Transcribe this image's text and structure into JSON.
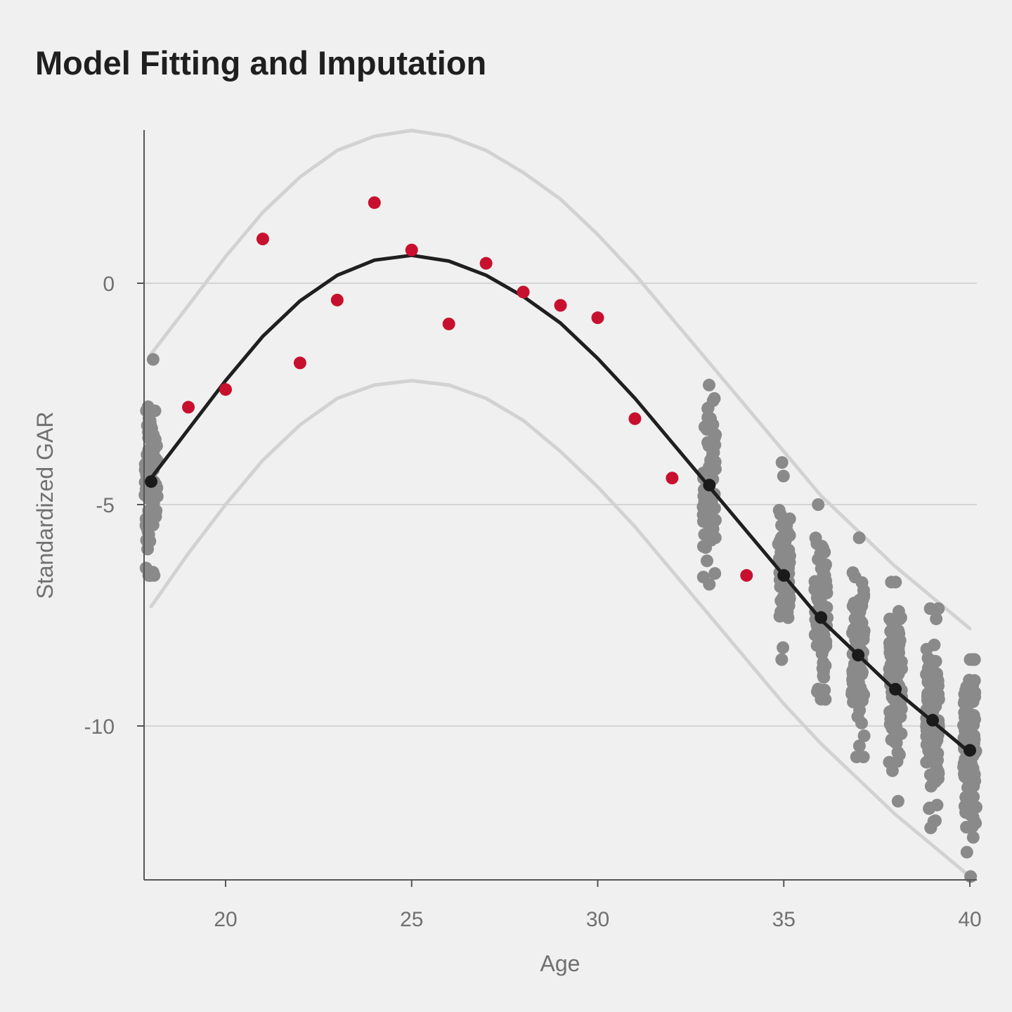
{
  "chart_data": {
    "type": "scatter",
    "title": "Model Fitting and Imputation",
    "xlabel": "Age",
    "ylabel": "Standardized GAR",
    "xlim": [
      17.8,
      40.2
    ],
    "ylim": [
      -13.5,
      3.4
    ],
    "x_ticks": [
      20,
      25,
      30,
      35,
      40
    ],
    "y_ticks": [
      0,
      -5,
      -10
    ],
    "x_tick_labels": [
      "20",
      "25",
      "30",
      "35",
      "40"
    ],
    "y_tick_labels": [
      "0",
      "-5",
      "-10"
    ],
    "grid": "horizontal",
    "colors": {
      "observed": "#c8102e",
      "imputed": "#8a8a8a",
      "imputed_mean": "#1a1a1a",
      "fit_line": "#1f1f1f",
      "interval_band": "#d2d2d2"
    },
    "series": [
      {
        "name": "Fitted curve",
        "kind": "line",
        "x": [
          18,
          19,
          20,
          21,
          22,
          23,
          24,
          25,
          26,
          27,
          28,
          29,
          30,
          31,
          32,
          33,
          34,
          35,
          36,
          37,
          38,
          39,
          40
        ],
        "y": [
          -4.4,
          -3.3,
          -2.2,
          -1.2,
          -0.4,
          0.18,
          0.52,
          0.63,
          0.5,
          0.18,
          -0.3,
          -0.9,
          -1.7,
          -2.6,
          -3.6,
          -4.6,
          -5.6,
          -6.6,
          -7.6,
          -8.4,
          -9.2,
          -9.9,
          -10.6
        ]
      },
      {
        "name": "Upper bound",
        "kind": "line",
        "x": [
          18,
          19,
          20,
          21,
          22,
          23,
          24,
          25,
          26,
          27,
          28,
          29,
          30,
          31,
          32,
          33,
          34,
          35,
          36,
          37,
          38,
          39,
          40
        ],
        "y": [
          -1.6,
          -0.5,
          0.6,
          1.6,
          2.4,
          3.0,
          3.32,
          3.45,
          3.32,
          3.0,
          2.5,
          1.9,
          1.1,
          0.2,
          -0.8,
          -1.8,
          -2.8,
          -3.8,
          -4.8,
          -5.6,
          -6.4,
          -7.1,
          -7.8
        ]
      },
      {
        "name": "Lower bound",
        "kind": "line",
        "x": [
          18,
          19,
          20,
          21,
          22,
          23,
          24,
          25,
          26,
          27,
          28,
          29,
          30,
          31,
          32,
          33,
          34,
          35,
          36,
          37,
          38,
          39,
          40
        ],
        "y": [
          -7.3,
          -6.1,
          -5.0,
          -4.0,
          -3.2,
          -2.6,
          -2.3,
          -2.2,
          -2.3,
          -2.6,
          -3.1,
          -3.8,
          -4.6,
          -5.5,
          -6.5,
          -7.5,
          -8.5,
          -9.5,
          -10.4,
          -11.2,
          -12.0,
          -12.7,
          -13.4
        ]
      },
      {
        "name": "Observed",
        "kind": "points",
        "x": [
          19,
          20,
          21,
          22,
          23,
          24,
          25,
          26,
          27,
          28,
          29,
          30,
          31,
          32,
          34
        ],
        "y": [
          -2.8,
          -2.4,
          1.0,
          -1.8,
          -0.38,
          1.82,
          0.75,
          -0.92,
          0.45,
          -0.2,
          -0.5,
          -0.78,
          -3.06,
          -4.4,
          -6.6
        ]
      },
      {
        "name": "Imputed mean",
        "kind": "points",
        "x": [
          18,
          33,
          35,
          36,
          37,
          38,
          39,
          40
        ],
        "y": [
          -4.48,
          -4.56,
          -6.6,
          -7.55,
          -8.4,
          -9.17,
          -9.87,
          -10.55
        ]
      }
    ],
    "imputed_clusters": [
      {
        "age": 18,
        "center": -4.48,
        "spread": 1.1,
        "count": 90,
        "ymin": -6.6,
        "ymax": -1.72
      },
      {
        "age": 33,
        "center": -4.56,
        "spread": 0.9,
        "count": 80,
        "ymin": -6.8,
        "ymax": -2.3
      },
      {
        "age": 35,
        "center": -6.6,
        "spread": 0.75,
        "count": 70,
        "ymin": -8.5,
        "ymax": -4.05
      },
      {
        "age": 36,
        "center": -7.55,
        "spread": 0.8,
        "count": 80,
        "ymin": -9.4,
        "ymax": -5.0
      },
      {
        "age": 37,
        "center": -8.4,
        "spread": 0.85,
        "count": 90,
        "ymin": -10.7,
        "ymax": -5.75
      },
      {
        "age": 38,
        "center": -9.17,
        "spread": 0.9,
        "count": 100,
        "ymin": -11.7,
        "ymax": -6.75
      },
      {
        "age": 39,
        "center": -9.87,
        "spread": 0.9,
        "count": 110,
        "ymin": -12.3,
        "ymax": -7.35
      },
      {
        "age": 40,
        "center": -10.55,
        "spread": 0.95,
        "count": 120,
        "ymin": -13.4,
        "ymax": -8.5
      }
    ]
  }
}
